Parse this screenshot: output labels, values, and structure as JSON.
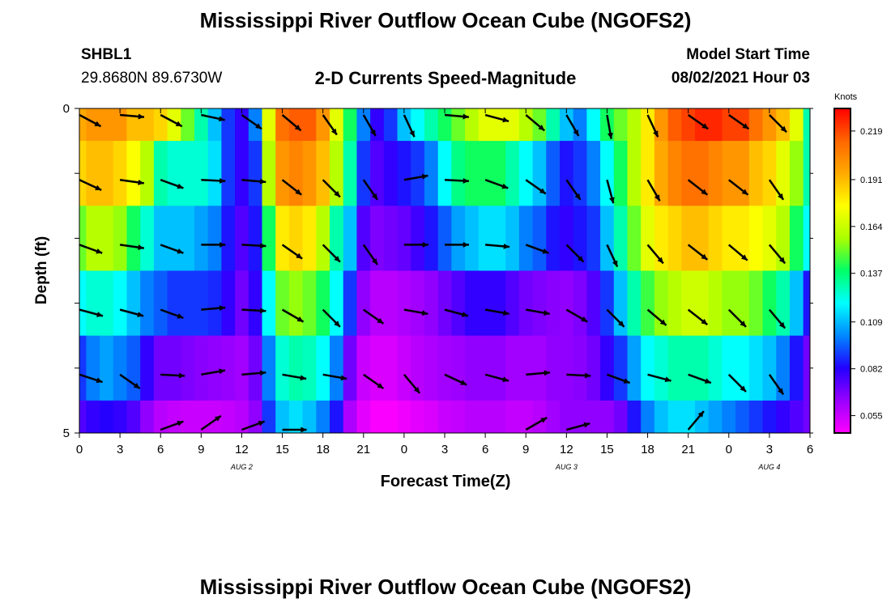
{
  "header": {
    "title": "Mississippi River Outflow Ocean Cube (NGOFS2)",
    "station_name": "SHBL1",
    "station_coords": "29.8680N  89.6730W",
    "plot_title": "2-D Currents Speed-Magnitude",
    "model_start_label": "Model Start Time",
    "model_start_value": "08/02/2021 Hour 03"
  },
  "footer": {
    "title": "Mississippi River Outflow Ocean Cube (NGOFS2)"
  },
  "chart_data": {
    "type": "heatmap",
    "xlabel": "Forecast Time(Z)",
    "ylabel": "Depth (ft)",
    "x_tick_labels": [
      "0",
      "3",
      "6",
      "9",
      "12",
      "15",
      "18",
      "21",
      "0",
      "3",
      "6",
      "9",
      "12",
      "15",
      "18",
      "21",
      "0",
      "3",
      "6"
    ],
    "y_tick_labels": [
      "0",
      "5"
    ],
    "ylim": [
      0,
      5
    ],
    "date_labels": [
      {
        "label": "AUG  2",
        "hour": 12
      },
      {
        "label": "AUG  3",
        "hour": 36
      },
      {
        "label": "AUG  4",
        "hour": 51
      }
    ],
    "colorbar": {
      "unit": "Knots",
      "tick_labels": [
        "0.219",
        "0.191",
        "0.164",
        "0.137",
        "0.109",
        "0.082",
        "0.055"
      ],
      "range": [
        0.045,
        0.232
      ],
      "colors": [
        "#ff00ff",
        "#9900ff",
        "#2200ff",
        "#0088ff",
        "#00ffff",
        "#00ff66",
        "#aaff00",
        "#ffff00",
        "#ffaa00",
        "#ff6600",
        "#ff0000"
      ]
    },
    "hours": [
      0,
      1,
      2,
      3,
      4,
      5,
      6,
      7,
      8,
      9,
      10,
      11,
      12,
      13,
      14,
      15,
      16,
      17,
      18,
      19,
      20,
      21,
      22,
      23,
      24,
      25,
      26,
      27,
      28,
      29,
      30,
      31,
      32,
      33,
      34,
      35,
      36,
      37,
      38,
      39,
      40,
      41,
      42,
      43,
      44,
      45,
      46,
      47,
      48,
      49,
      50,
      51,
      52,
      53,
      54
    ],
    "depth_layers": [
      {
        "depth_range": [
          0.0,
          0.5
        ],
        "speed": [
          0.195,
          0.2,
          0.2,
          0.2,
          0.19,
          0.19,
          0.185,
          0.17,
          0.15,
          0.13,
          0.11,
          0.09,
          0.08,
          0.1,
          0.17,
          0.21,
          0.215,
          0.215,
          0.2,
          0.17,
          0.14,
          0.1,
          0.08,
          0.09,
          0.11,
          0.12,
          0.13,
          0.14,
          0.15,
          0.16,
          0.17,
          0.17,
          0.17,
          0.16,
          0.15,
          0.13,
          0.11,
          0.1,
          0.12,
          0.14,
          0.15,
          0.16,
          0.18,
          0.2,
          0.215,
          0.22,
          0.225,
          0.225,
          0.22,
          0.22,
          0.21,
          0.2,
          0.19,
          0.17,
          0.13
        ]
      },
      {
        "depth_range": [
          0.5,
          1.5
        ],
        "speed": [
          0.185,
          0.19,
          0.19,
          0.185,
          0.175,
          0.16,
          0.13,
          0.125,
          0.125,
          0.125,
          0.115,
          0.09,
          0.08,
          0.09,
          0.16,
          0.2,
          0.205,
          0.2,
          0.19,
          0.16,
          0.13,
          0.09,
          0.075,
          0.08,
          0.085,
          0.09,
          0.1,
          0.12,
          0.135,
          0.14,
          0.14,
          0.14,
          0.13,
          0.12,
          0.11,
          0.095,
          0.085,
          0.09,
          0.1,
          0.12,
          0.14,
          0.16,
          0.18,
          0.195,
          0.205,
          0.21,
          0.21,
          0.205,
          0.2,
          0.2,
          0.19,
          0.185,
          0.17,
          0.155,
          0.13
        ]
      },
      {
        "depth_range": [
          1.5,
          2.5
        ],
        "speed": [
          0.15,
          0.16,
          0.16,
          0.155,
          0.14,
          0.125,
          0.11,
          0.11,
          0.11,
          0.105,
          0.1,
          0.085,
          0.075,
          0.085,
          0.14,
          0.18,
          0.185,
          0.18,
          0.16,
          0.13,
          0.11,
          0.075,
          0.068,
          0.07,
          0.072,
          0.078,
          0.085,
          0.095,
          0.105,
          0.11,
          0.115,
          0.115,
          0.11,
          0.1,
          0.095,
          0.085,
          0.08,
          0.085,
          0.09,
          0.11,
          0.13,
          0.15,
          0.17,
          0.18,
          0.185,
          0.19,
          0.19,
          0.185,
          0.18,
          0.18,
          0.175,
          0.17,
          0.16,
          0.14,
          0.12
        ]
      },
      {
        "depth_range": [
          2.5,
          3.5
        ],
        "speed": [
          0.12,
          0.125,
          0.125,
          0.12,
          0.11,
          0.1,
          0.095,
          0.09,
          0.09,
          0.09,
          0.088,
          0.08,
          0.07,
          0.08,
          0.12,
          0.15,
          0.155,
          0.15,
          0.14,
          0.12,
          0.09,
          0.065,
          0.058,
          0.058,
          0.06,
          0.062,
          0.065,
          0.07,
          0.075,
          0.08,
          0.08,
          0.08,
          0.075,
          0.07,
          0.068,
          0.066,
          0.065,
          0.068,
          0.075,
          0.09,
          0.11,
          0.13,
          0.145,
          0.155,
          0.16,
          0.165,
          0.165,
          0.16,
          0.155,
          0.155,
          0.15,
          0.14,
          0.13,
          0.11,
          0.085
        ]
      },
      {
        "depth_range": [
          3.5,
          4.5
        ],
        "speed": [
          0.09,
          0.1,
          0.105,
          0.1,
          0.095,
          0.08,
          0.07,
          0.07,
          0.068,
          0.066,
          0.065,
          0.064,
          0.062,
          0.07,
          0.1,
          0.125,
          0.13,
          0.128,
          0.12,
          0.1,
          0.07,
          0.055,
          0.052,
          0.052,
          0.055,
          0.058,
          0.06,
          0.062,
          0.063,
          0.065,
          0.065,
          0.065,
          0.062,
          0.062,
          0.062,
          0.065,
          0.065,
          0.066,
          0.07,
          0.08,
          0.09,
          0.105,
          0.12,
          0.125,
          0.13,
          0.13,
          0.13,
          0.125,
          0.12,
          0.12,
          0.115,
          0.11,
          0.1,
          0.085,
          0.07
        ]
      },
      {
        "depth_range": [
          4.5,
          5.0
        ],
        "speed": [
          0.075,
          0.08,
          0.082,
          0.08,
          0.075,
          0.065,
          0.058,
          0.056,
          0.055,
          0.055,
          0.055,
          0.056,
          0.058,
          0.065,
          0.09,
          0.11,
          0.115,
          0.11,
          0.1,
          0.085,
          0.06,
          0.05,
          0.046,
          0.046,
          0.048,
          0.05,
          0.052,
          0.055,
          0.056,
          0.058,
          0.058,
          0.058,
          0.056,
          0.056,
          0.058,
          0.062,
          0.065,
          0.065,
          0.065,
          0.065,
          0.07,
          0.085,
          0.1,
          0.11,
          0.115,
          0.115,
          0.11,
          0.105,
          0.1,
          0.095,
          0.09,
          0.085,
          0.08,
          0.075,
          0.07
        ]
      }
    ],
    "vectors": [
      {
        "depth": 0.1,
        "hour": 0,
        "dir": 28
      },
      {
        "depth": 0.1,
        "hour": 3,
        "dir": 5
      },
      {
        "depth": 0.1,
        "hour": 6,
        "dir": 28
      },
      {
        "depth": 0.1,
        "hour": 9,
        "dir": 12
      },
      {
        "depth": 0.1,
        "hour": 12,
        "dir": 35
      },
      {
        "depth": 0.1,
        "hour": 15,
        "dir": 40
      },
      {
        "depth": 0.1,
        "hour": 18,
        "dir": 55
      },
      {
        "depth": 0.1,
        "hour": 21,
        "dir": 60
      },
      {
        "depth": 0.1,
        "hour": 24,
        "dir": 65
      },
      {
        "depth": 0.1,
        "hour": 27,
        "dir": 5
      },
      {
        "depth": 0.1,
        "hour": 30,
        "dir": 15
      },
      {
        "depth": 0.1,
        "hour": 33,
        "dir": 40
      },
      {
        "depth": 0.1,
        "hour": 36,
        "dir": 60
      },
      {
        "depth": 0.1,
        "hour": 39,
        "dir": 80
      },
      {
        "depth": 0.1,
        "hour": 42,
        "dir": 65
      },
      {
        "depth": 0.1,
        "hour": 45,
        "dir": 35
      },
      {
        "depth": 0.1,
        "hour": 48,
        "dir": 35
      },
      {
        "depth": 0.1,
        "hour": 51,
        "dir": 45
      },
      {
        "depth": 1.1,
        "hour": 0,
        "dir": 25
      },
      {
        "depth": 1.1,
        "hour": 3,
        "dir": 8
      },
      {
        "depth": 1.1,
        "hour": 6,
        "dir": 20
      },
      {
        "depth": 1.1,
        "hour": 9,
        "dir": 3
      },
      {
        "depth": 1.1,
        "hour": 12,
        "dir": 5
      },
      {
        "depth": 1.1,
        "hour": 15,
        "dir": 38
      },
      {
        "depth": 1.1,
        "hour": 18,
        "dir": 45
      },
      {
        "depth": 1.1,
        "hour": 21,
        "dir": 55
      },
      {
        "depth": 1.1,
        "hour": 24,
        "dir": -10
      },
      {
        "depth": 1.1,
        "hour": 27,
        "dir": 3
      },
      {
        "depth": 1.1,
        "hour": 30,
        "dir": 20
      },
      {
        "depth": 1.1,
        "hour": 33,
        "dir": 35
      },
      {
        "depth": 1.1,
        "hour": 36,
        "dir": 55
      },
      {
        "depth": 1.1,
        "hour": 39,
        "dir": 75
      },
      {
        "depth": 1.1,
        "hour": 42,
        "dir": 60
      },
      {
        "depth": 1.1,
        "hour": 45,
        "dir": 38
      },
      {
        "depth": 1.1,
        "hour": 48,
        "dir": 38
      },
      {
        "depth": 1.1,
        "hour": 51,
        "dir": 55
      },
      {
        "depth": 2.1,
        "hour": 0,
        "dir": 20
      },
      {
        "depth": 2.1,
        "hour": 3,
        "dir": 8
      },
      {
        "depth": 2.1,
        "hour": 6,
        "dir": 20
      },
      {
        "depth": 2.1,
        "hour": 9,
        "dir": 0
      },
      {
        "depth": 2.1,
        "hour": 12,
        "dir": 3
      },
      {
        "depth": 2.1,
        "hour": 15,
        "dir": 35
      },
      {
        "depth": 2.1,
        "hour": 18,
        "dir": 45
      },
      {
        "depth": 2.1,
        "hour": 21,
        "dir": 55
      },
      {
        "depth": 2.1,
        "hour": 24,
        "dir": 0
      },
      {
        "depth": 2.1,
        "hour": 27,
        "dir": 0
      },
      {
        "depth": 2.1,
        "hour": 30,
        "dir": 5
      },
      {
        "depth": 2.1,
        "hour": 33,
        "dir": 20
      },
      {
        "depth": 2.1,
        "hour": 36,
        "dir": 45
      },
      {
        "depth": 2.1,
        "hour": 39,
        "dir": 65
      },
      {
        "depth": 2.1,
        "hour": 42,
        "dir": 50
      },
      {
        "depth": 2.1,
        "hour": 45,
        "dir": 38
      },
      {
        "depth": 2.1,
        "hour": 48,
        "dir": 40
      },
      {
        "depth": 2.1,
        "hour": 51,
        "dir": 50
      },
      {
        "depth": 3.1,
        "hour": 0,
        "dir": 15
      },
      {
        "depth": 3.1,
        "hour": 3,
        "dir": 15
      },
      {
        "depth": 3.1,
        "hour": 6,
        "dir": 20
      },
      {
        "depth": 3.1,
        "hour": 9,
        "dir": -5
      },
      {
        "depth": 3.1,
        "hour": 12,
        "dir": 3
      },
      {
        "depth": 3.1,
        "hour": 15,
        "dir": 30
      },
      {
        "depth": 3.1,
        "hour": 18,
        "dir": 45
      },
      {
        "depth": 3.1,
        "hour": 21,
        "dir": 35
      },
      {
        "depth": 3.1,
        "hour": 24,
        "dir": 10
      },
      {
        "depth": 3.1,
        "hour": 27,
        "dir": 15
      },
      {
        "depth": 3.1,
        "hour": 30,
        "dir": 10
      },
      {
        "depth": 3.1,
        "hour": 33,
        "dir": 10
      },
      {
        "depth": 3.1,
        "hour": 36,
        "dir": 30
      },
      {
        "depth": 3.1,
        "hour": 39,
        "dir": 45
      },
      {
        "depth": 3.1,
        "hour": 42,
        "dir": 40
      },
      {
        "depth": 3.1,
        "hour": 45,
        "dir": 38
      },
      {
        "depth": 3.1,
        "hour": 48,
        "dir": 45
      },
      {
        "depth": 3.1,
        "hour": 51,
        "dir": 50
      },
      {
        "depth": 4.1,
        "hour": 0,
        "dir": 18
      },
      {
        "depth": 4.1,
        "hour": 3,
        "dir": 35
      },
      {
        "depth": 4.1,
        "hour": 6,
        "dir": 3
      },
      {
        "depth": 4.1,
        "hour": 9,
        "dir": -10
      },
      {
        "depth": 4.1,
        "hour": 12,
        "dir": -5
      },
      {
        "depth": 4.1,
        "hour": 15,
        "dir": 10
      },
      {
        "depth": 4.1,
        "hour": 18,
        "dir": 10
      },
      {
        "depth": 4.1,
        "hour": 21,
        "dir": 35
      },
      {
        "depth": 4.1,
        "hour": 24,
        "dir": 50
      },
      {
        "depth": 4.1,
        "hour": 27,
        "dir": 25
      },
      {
        "depth": 4.1,
        "hour": 30,
        "dir": 15
      },
      {
        "depth": 4.1,
        "hour": 33,
        "dir": -5
      },
      {
        "depth": 4.1,
        "hour": 36,
        "dir": 3
      },
      {
        "depth": 4.1,
        "hour": 39,
        "dir": 20
      },
      {
        "depth": 4.1,
        "hour": 42,
        "dir": 15
      },
      {
        "depth": 4.1,
        "hour": 45,
        "dir": 20
      },
      {
        "depth": 4.1,
        "hour": 48,
        "dir": 45
      },
      {
        "depth": 4.1,
        "hour": 51,
        "dir": 55
      },
      {
        "depth": 4.95,
        "hour": 6,
        "dir": -20
      },
      {
        "depth": 4.95,
        "hour": 9,
        "dir": -35
      },
      {
        "depth": 4.95,
        "hour": 12,
        "dir": -20
      },
      {
        "depth": 4.95,
        "hour": 15,
        "dir": 0
      },
      {
        "depth": 4.95,
        "hour": 33,
        "dir": -30
      },
      {
        "depth": 4.95,
        "hour": 36,
        "dir": -15
      },
      {
        "depth": 4.95,
        "hour": 45,
        "dir": -50
      }
    ]
  }
}
